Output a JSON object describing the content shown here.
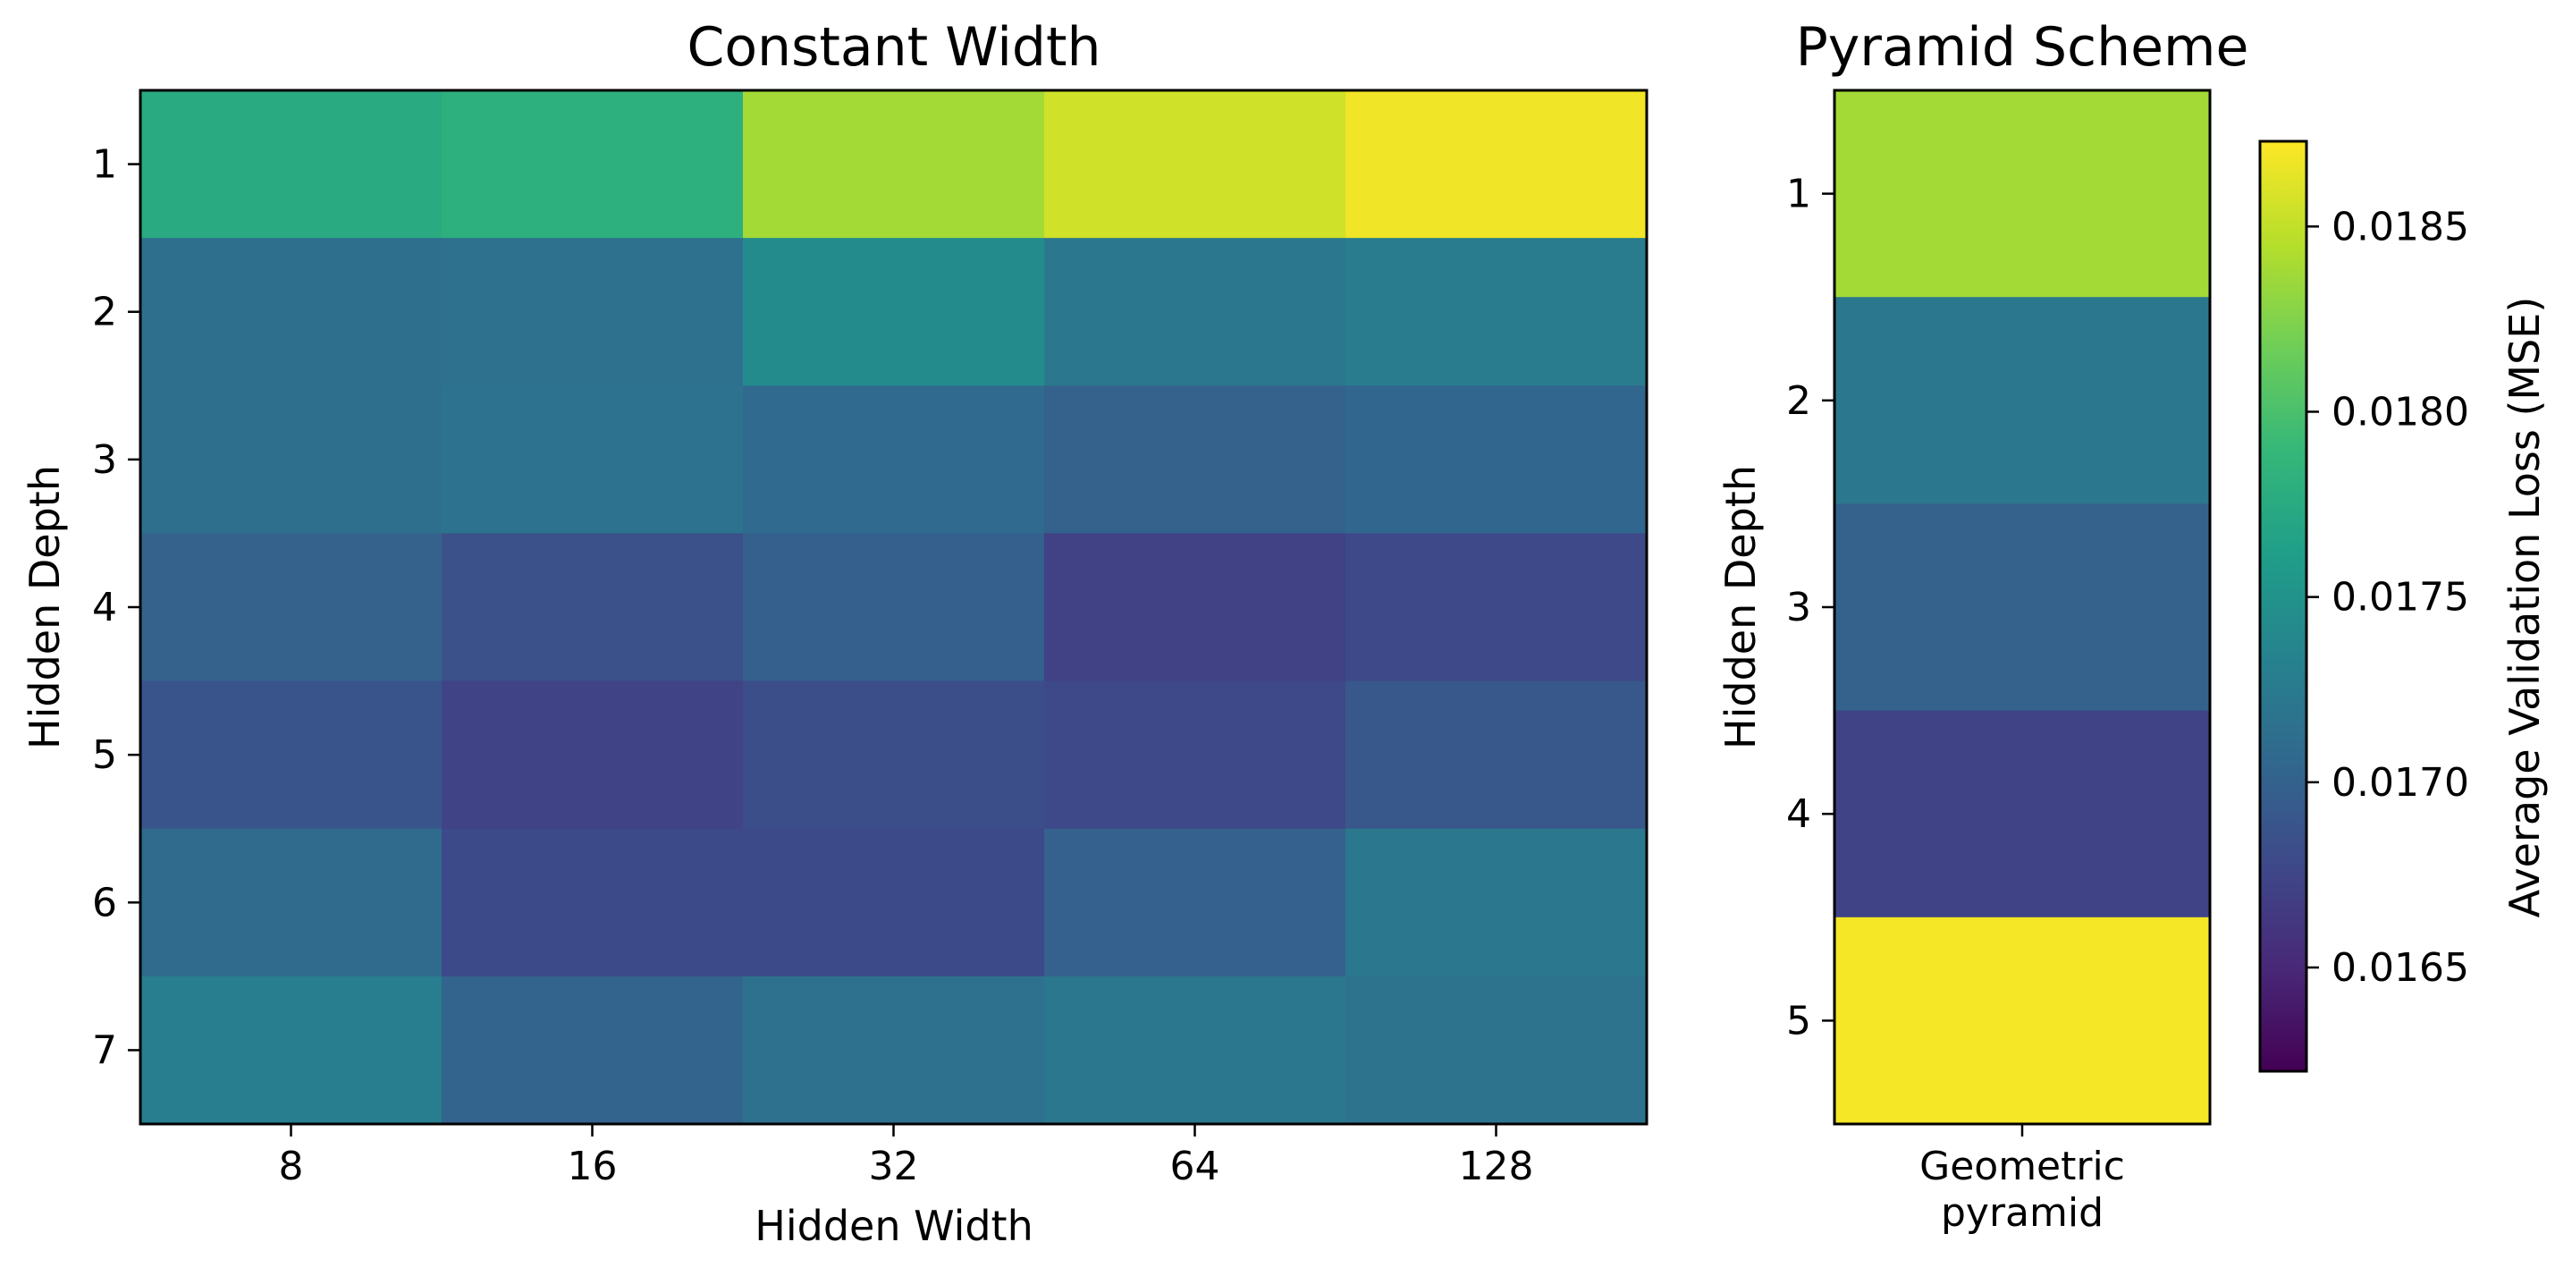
{
  "chart_data": [
    {
      "type": "heatmap",
      "title": "Constant Width",
      "xlabel": "Hidden Width",
      "ylabel": "Hidden Depth",
      "x_categories": [
        "8",
        "16",
        "32",
        "64",
        "128"
      ],
      "y_categories": [
        "1",
        "2",
        "3",
        "4",
        "5",
        "6",
        "7"
      ],
      "values": [
        [
          0.01775,
          0.0178,
          0.01838,
          0.01855,
          0.01868
        ],
        [
          0.01713,
          0.01715,
          0.01743,
          0.01722,
          0.01727
        ],
        [
          0.01713,
          0.01716,
          0.01708,
          0.017,
          0.01705
        ],
        [
          0.017,
          0.01685,
          0.01698,
          0.01672,
          0.01678
        ],
        [
          0.01688,
          0.01673,
          0.01682,
          0.01678,
          0.01691
        ],
        [
          0.01709,
          0.01679,
          0.01679,
          0.01699,
          0.01722
        ],
        [
          0.01728,
          0.01702,
          0.01715,
          0.01722,
          0.01717
        ]
      ]
    },
    {
      "type": "heatmap",
      "title": "Pyramid Scheme",
      "xlabel": "",
      "ylabel": "Hidden Depth",
      "x_categories": [
        "Geometric\npyramid"
      ],
      "y_categories": [
        "1",
        "2",
        "3",
        "4",
        "5"
      ],
      "values": [
        [
          0.01838
        ],
        [
          0.01722
        ],
        [
          0.017
        ],
        [
          0.01673
        ],
        [
          0.0187
        ]
      ]
    }
  ],
  "colorbar": {
    "label": "Average Validation Loss (MSE)",
    "min": 0.01622,
    "max": 0.01873,
    "ticks": [
      "0.0165",
      "0.0170",
      "0.0175",
      "0.0180",
      "0.0185"
    ],
    "colormap": "viridis",
    "colors": [
      "#440154",
      "#482878",
      "#3e4989",
      "#31688e",
      "#26828e",
      "#1f9e89",
      "#35b779",
      "#6ece58",
      "#b5de2b",
      "#fde725"
    ]
  }
}
